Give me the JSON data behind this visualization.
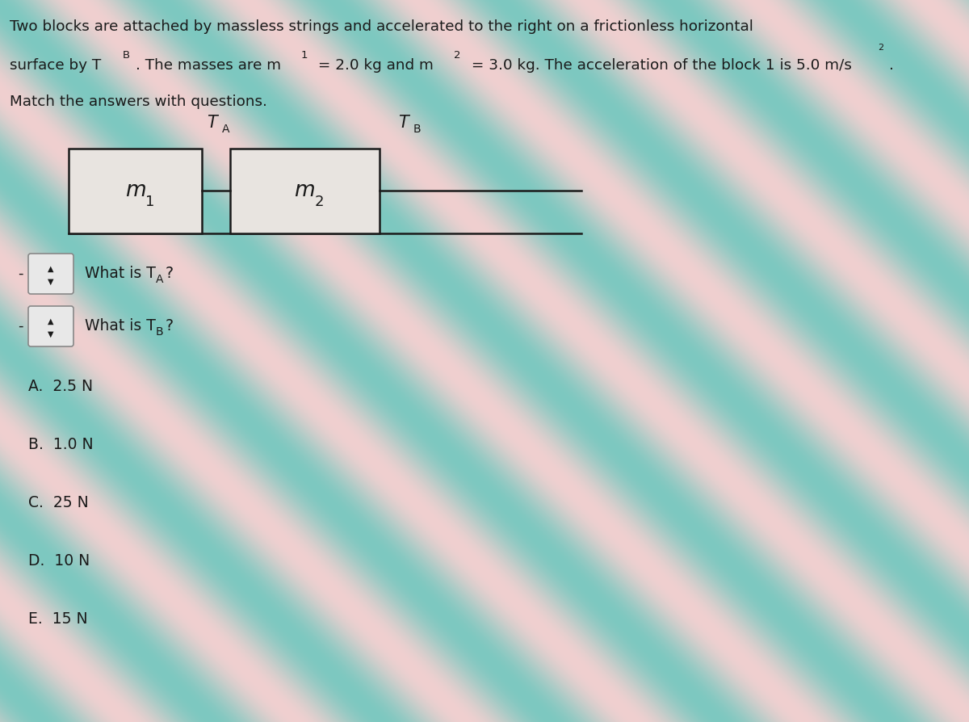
{
  "bg_color": "#b8d8d0",
  "text_color": "#1a1a1a",
  "title_line1": "Two blocks are attached by massless strings and accelerated to the right on a frictionless horizontal",
  "title_line2": "surface by T",
  "title_line2b": "B",
  "title_line2c": ". The masses are m",
  "title_line2d": "1",
  "title_line2e": " = 2.0 kg and m",
  "title_line2f": "2",
  "title_line2g": " = 3.0 kg. The acceleration of the block 1 is 5.0 m/s",
  "title_line2h": "2",
  "title_line3": "Match the answers with questions.",
  "block1_label": "m",
  "block1_sub": "1",
  "block2_label": "m",
  "block2_sub": "2",
  "ta_label": "T",
  "ta_sub": "A",
  "tb_label": "T",
  "tb_sub": "B",
  "q1_main": "What is T",
  "q1_sub": "A",
  "q1_end": "?",
  "q2_main": "What is T",
  "q2_sub": "B",
  "q2_end": "?",
  "answers": [
    "A.  2.5 N",
    "B.  1.0 N",
    "C.  25 N",
    "D.  10 N",
    "E.  15 N"
  ],
  "box_facecolor": "#e8e4e0",
  "box_edgecolor": "#1a1a1a",
  "line_color": "#1a1a1a",
  "dropdown_facecolor": "#e8e8e8",
  "dropdown_edgecolor": "#888888"
}
